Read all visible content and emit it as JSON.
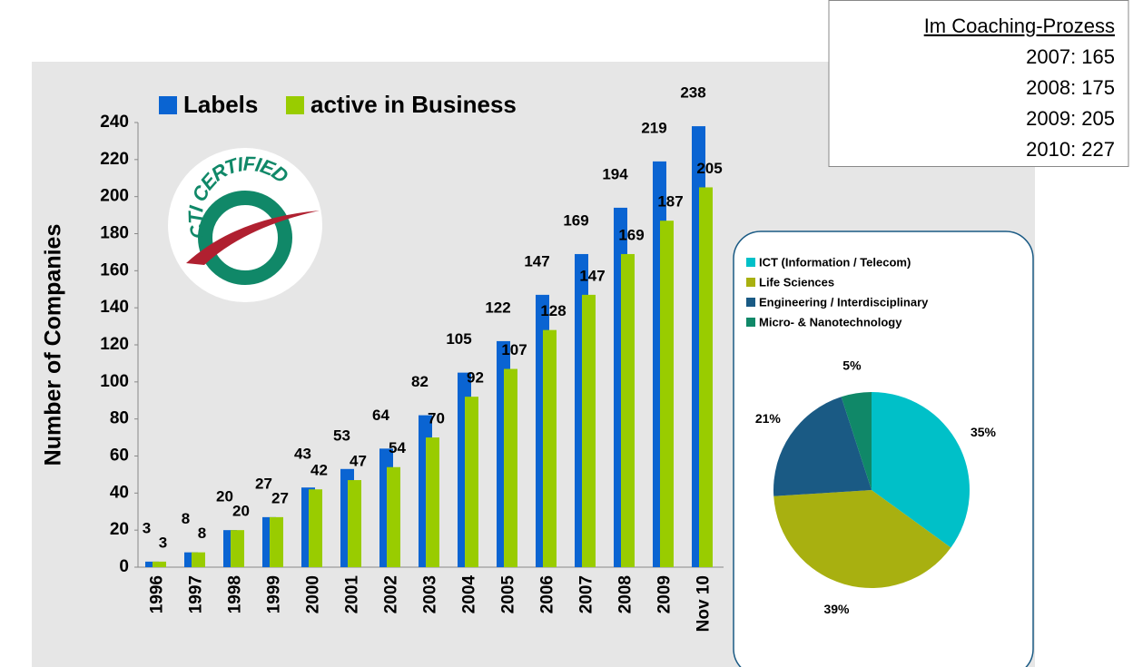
{
  "chart_data": [
    {
      "type": "bar",
      "y_label": "Number of Companies",
      "categories": [
        "1996",
        "1997",
        "1998",
        "1999",
        "2000",
        "2001",
        "2002",
        "2003",
        "2004",
        "2005",
        "2006",
        "2007",
        "2008",
        "2009",
        "Nov 10"
      ],
      "series": [
        {
          "name": "Labels",
          "color": "#0a64d2",
          "values": [
            3,
            8,
            20,
            27,
            43,
            53,
            64,
            82,
            105,
            122,
            147,
            169,
            194,
            219,
            238
          ]
        },
        {
          "name": "active in Business",
          "color": "#99cc00",
          "values": [
            3,
            8,
            20,
            27,
            42,
            47,
            54,
            70,
            92,
            107,
            128,
            147,
            169,
            187,
            205
          ]
        }
      ],
      "ylim": [
        0,
        240
      ],
      "yticks": [
        0,
        20,
        40,
        60,
        80,
        100,
        120,
        140,
        160,
        180,
        200,
        220,
        240
      ],
      "legend": "top"
    },
    {
      "type": "pie",
      "categories": [
        "ICT (Information / Telecom)",
        "Life Sciences",
        "Engineering / Interdisciplinary",
        "Micro- & Nanotechnology"
      ],
      "values": [
        35,
        39,
        21,
        5
      ],
      "value_labels": [
        "35%",
        "39%",
        "21%",
        "5%"
      ],
      "colors": [
        "#00c0c8",
        "#a8b010",
        "#1a5a84",
        "#108868"
      ]
    }
  ],
  "logo": {
    "text": "CTI CERTIFIED"
  },
  "text_box": {
    "title": "Im Coaching-Prozess",
    "lines": [
      "2007: 165",
      "2008: 175",
      "2009: 205",
      "2010: 227"
    ]
  }
}
